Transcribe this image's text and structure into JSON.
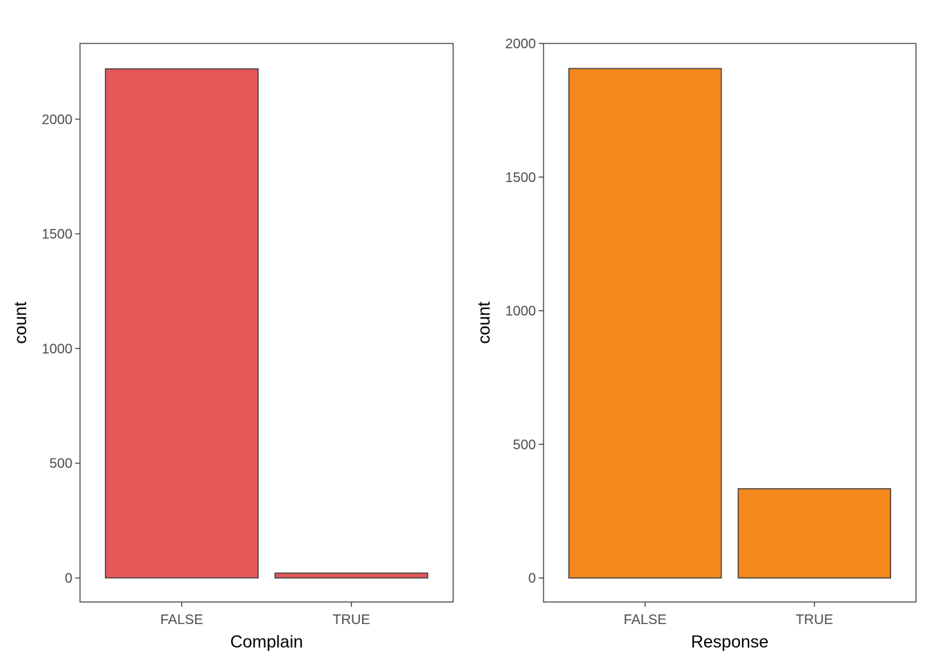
{
  "chart_data": [
    {
      "type": "bar",
      "xlabel": "Complain",
      "ylabel": "count",
      "categories": [
        "FALSE",
        "TRUE"
      ],
      "values": [
        2219,
        21
      ],
      "ylim": [
        -105,
        2330
      ],
      "yticks": [
        0,
        500,
        1000,
        1500,
        2000
      ],
      "ytick_labels": [
        "0",
        "500",
        "1000",
        "1500",
        "2000"
      ],
      "fill_color": "#e55759",
      "grid": false,
      "legend": "none"
    },
    {
      "type": "bar",
      "xlabel": "Response",
      "ylabel": "count",
      "categories": [
        "FALSE",
        "TRUE"
      ],
      "values": [
        1906,
        334
      ],
      "ylim": [
        -90,
        2000
      ],
      "yticks": [
        0,
        500,
        1000,
        1500,
        2000
      ],
      "ytick_labels": [
        "0",
        "500",
        "1000",
        "1500",
        "2000"
      ],
      "fill_color": "#f5881a",
      "grid": false,
      "legend": "none"
    }
  ]
}
